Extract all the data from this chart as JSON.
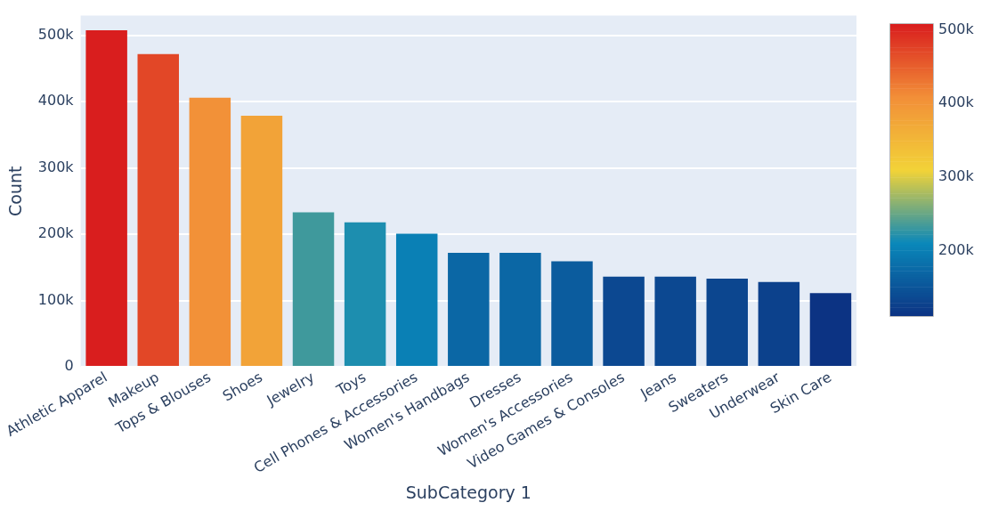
{
  "chart_data": {
    "type": "bar",
    "xlabel": "SubCategory 1",
    "ylabel": "Count",
    "categories": [
      "Athletic Apparel",
      "Makeup",
      "Tops & Blouses",
      "Shoes",
      "Jewelry",
      "Toys",
      "Cell Phones & Accessories",
      "Women's Handbags",
      "Dresses",
      "Women's Accessories",
      "Video Games & Consoles",
      "Jeans",
      "Sweaters",
      "Underwear",
      "Skin Care"
    ],
    "values": [
      508000,
      472000,
      406000,
      379000,
      233000,
      218000,
      201000,
      172000,
      172000,
      159000,
      136000,
      136000,
      133000,
      128000,
      111000
    ],
    "colors": [
      "#d91e1e",
      "#e24727",
      "#f29138",
      "#f2a338",
      "#3f999c",
      "#1d8eaf",
      "#0a80b5",
      "#0b67a5",
      "#0b67a5",
      "#0b5c9e",
      "#0c4891",
      "#0c4891",
      "#0c468f",
      "#0c418c",
      "#0c3383"
    ],
    "ylim": [
      0,
      530000
    ],
    "yticks": [
      {
        "value": 0,
        "label": "0"
      },
      {
        "value": 100000,
        "label": "100k"
      },
      {
        "value": 200000,
        "label": "200k"
      },
      {
        "value": 300000,
        "label": "300k"
      },
      {
        "value": 400000,
        "label": "400k"
      },
      {
        "value": 500000,
        "label": "500k"
      }
    ],
    "grid": "y",
    "clim": [
      111000,
      508000
    ],
    "cticks": [
      {
        "value": 200000,
        "label": "200k"
      },
      {
        "value": 300000,
        "label": "300k"
      },
      {
        "value": 400000,
        "label": "400k"
      },
      {
        "value": 500000,
        "label": "500k"
      }
    ]
  }
}
